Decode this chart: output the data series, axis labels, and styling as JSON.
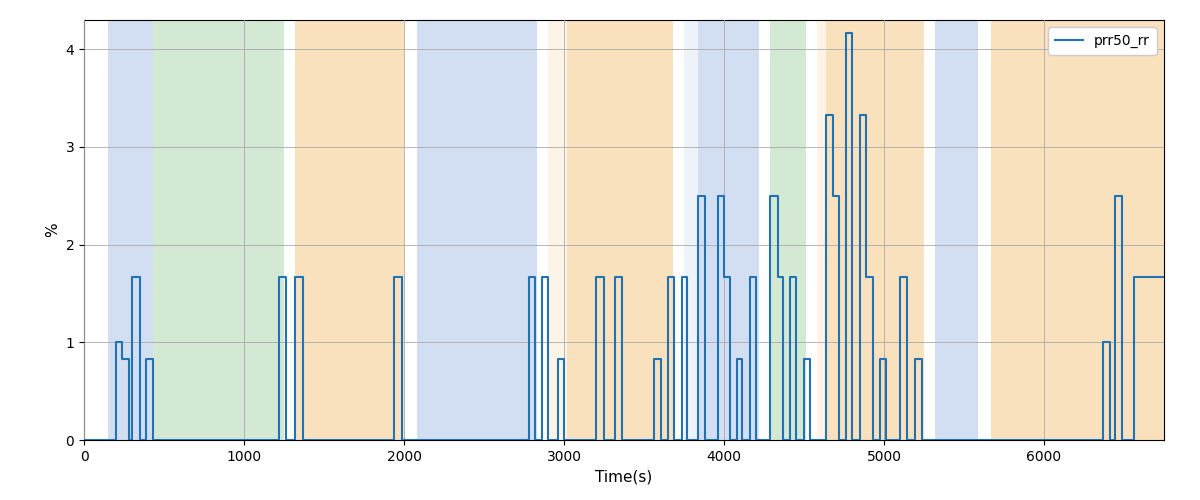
{
  "xlabel": "Time(s)",
  "ylabel": "%",
  "legend_label": "prr50_rr",
  "line_color": "#2171b5",
  "line_width": 1.5,
  "ylim": [
    0,
    4.3
  ],
  "xlim": [
    0,
    6750
  ],
  "figsize": [
    12.0,
    5.0
  ],
  "dpi": 100,
  "bg_regions": [
    {
      "xmin": 150,
      "xmax": 430,
      "color": "#aec6e8",
      "alpha": 0.55
    },
    {
      "xmin": 430,
      "xmax": 1250,
      "color": "#b2d8b2",
      "alpha": 0.55
    },
    {
      "xmin": 1320,
      "xmax": 2000,
      "color": "#f5c98a",
      "alpha": 0.55
    },
    {
      "xmin": 2080,
      "xmax": 2830,
      "color": "#aec6e8",
      "alpha": 0.55
    },
    {
      "xmin": 2900,
      "xmax": 3020,
      "color": "#f5c98a",
      "alpha": 0.2
    },
    {
      "xmin": 3020,
      "xmax": 3680,
      "color": "#f5c98a",
      "alpha": 0.55
    },
    {
      "xmin": 3750,
      "xmax": 3840,
      "color": "#aec6e8",
      "alpha": 0.2
    },
    {
      "xmin": 3840,
      "xmax": 4220,
      "color": "#aec6e8",
      "alpha": 0.55
    },
    {
      "xmin": 4290,
      "xmax": 4510,
      "color": "#b2d8b2",
      "alpha": 0.55
    },
    {
      "xmin": 4580,
      "xmax": 4640,
      "color": "#f5c98a",
      "alpha": 0.2
    },
    {
      "xmin": 4640,
      "xmax": 5250,
      "color": "#f5c98a",
      "alpha": 0.55
    },
    {
      "xmin": 5320,
      "xmax": 5590,
      "color": "#aec6e8",
      "alpha": 0.55
    },
    {
      "xmin": 5670,
      "xmax": 6750,
      "color": "#f5c98a",
      "alpha": 0.55
    }
  ],
  "xticks": [
    0,
    1000,
    2000,
    3000,
    4000,
    5000,
    6000
  ],
  "yticks": [
    0,
    1,
    2,
    3,
    4
  ],
  "line_segments": [
    [
      0,
      0.0
    ],
    [
      200,
      0.0
    ],
    [
      200,
      1.0
    ],
    [
      240,
      1.0
    ],
    [
      240,
      0.83
    ],
    [
      280,
      0.83
    ],
    [
      280,
      0.0
    ],
    [
      300,
      0.0
    ],
    [
      300,
      1.67
    ],
    [
      350,
      1.67
    ],
    [
      350,
      0.0
    ],
    [
      390,
      0.0
    ],
    [
      390,
      0.83
    ],
    [
      430,
      0.83
    ],
    [
      430,
      0.0
    ],
    [
      1220,
      0.0
    ],
    [
      1220,
      1.67
    ],
    [
      1265,
      1.67
    ],
    [
      1265,
      0.0
    ],
    [
      1320,
      0.0
    ],
    [
      1320,
      1.67
    ],
    [
      1370,
      1.67
    ],
    [
      1370,
      0.0
    ],
    [
      1940,
      0.0
    ],
    [
      1940,
      1.67
    ],
    [
      1985,
      1.67
    ],
    [
      1985,
      0.0
    ],
    [
      2780,
      0.0
    ],
    [
      2780,
      1.67
    ],
    [
      2820,
      1.67
    ],
    [
      2820,
      0.0
    ],
    [
      2860,
      0.0
    ],
    [
      2860,
      1.67
    ],
    [
      2900,
      1.67
    ],
    [
      2900,
      0.0
    ],
    [
      2960,
      0.0
    ],
    [
      2960,
      0.83
    ],
    [
      3000,
      0.83
    ],
    [
      3000,
      0.0
    ],
    [
      3200,
      0.0
    ],
    [
      3200,
      1.67
    ],
    [
      3250,
      1.67
    ],
    [
      3250,
      0.0
    ],
    [
      3320,
      0.0
    ],
    [
      3320,
      1.67
    ],
    [
      3360,
      1.67
    ],
    [
      3360,
      0.0
    ],
    [
      3560,
      0.0
    ],
    [
      3560,
      0.83
    ],
    [
      3605,
      0.83
    ],
    [
      3605,
      0.0
    ],
    [
      3650,
      0.0
    ],
    [
      3650,
      1.67
    ],
    [
      3690,
      1.67
    ],
    [
      3690,
      0.0
    ],
    [
      3735,
      0.0
    ],
    [
      3735,
      1.67
    ],
    [
      3770,
      1.67
    ],
    [
      3770,
      0.0
    ],
    [
      3840,
      0.0
    ],
    [
      3840,
      2.5
    ],
    [
      3880,
      2.5
    ],
    [
      3880,
      0.0
    ],
    [
      3960,
      0.0
    ],
    [
      3960,
      2.5
    ],
    [
      4000,
      2.5
    ],
    [
      4000,
      1.67
    ],
    [
      4035,
      1.67
    ],
    [
      4035,
      0.0
    ],
    [
      4080,
      0.0
    ],
    [
      4080,
      0.83
    ],
    [
      4115,
      0.83
    ],
    [
      4115,
      0.0
    ],
    [
      4160,
      0.0
    ],
    [
      4160,
      1.67
    ],
    [
      4200,
      1.67
    ],
    [
      4200,
      0.0
    ],
    [
      4290,
      0.0
    ],
    [
      4290,
      2.5
    ],
    [
      4335,
      2.5
    ],
    [
      4335,
      1.67
    ],
    [
      4370,
      1.67
    ],
    [
      4370,
      0.0
    ],
    [
      4415,
      0.0
    ],
    [
      4415,
      1.67
    ],
    [
      4450,
      1.67
    ],
    [
      4450,
      0.0
    ],
    [
      4500,
      0.0
    ],
    [
      4500,
      0.83
    ],
    [
      4540,
      0.83
    ],
    [
      4540,
      0.0
    ],
    [
      4640,
      0.0
    ],
    [
      4640,
      3.33
    ],
    [
      4680,
      3.33
    ],
    [
      4680,
      2.5
    ],
    [
      4720,
      2.5
    ],
    [
      4720,
      0.0
    ],
    [
      4760,
      0.0
    ],
    [
      4760,
      4.17
    ],
    [
      4800,
      4.17
    ],
    [
      4800,
      0.0
    ],
    [
      4850,
      0.0
    ],
    [
      4850,
      3.33
    ],
    [
      4890,
      3.33
    ],
    [
      4890,
      1.67
    ],
    [
      4930,
      1.67
    ],
    [
      4930,
      0.0
    ],
    [
      4975,
      0.0
    ],
    [
      4975,
      0.83
    ],
    [
      5015,
      0.83
    ],
    [
      5015,
      0.0
    ],
    [
      5100,
      0.0
    ],
    [
      5100,
      1.67
    ],
    [
      5145,
      1.67
    ],
    [
      5145,
      0.0
    ],
    [
      5195,
      0.0
    ],
    [
      5195,
      0.83
    ],
    [
      5235,
      0.83
    ],
    [
      5235,
      0.0
    ],
    [
      6370,
      0.0
    ],
    [
      6370,
      1.0
    ],
    [
      6415,
      1.0
    ],
    [
      6415,
      0.0
    ],
    [
      6445,
      0.0
    ],
    [
      6445,
      2.5
    ],
    [
      6490,
      2.5
    ],
    [
      6490,
      0.0
    ],
    [
      6560,
      0.0
    ],
    [
      6560,
      1.67
    ],
    [
      6595,
      1.67
    ],
    [
      6600,
      1.67
    ],
    [
      6750,
      1.67
    ]
  ]
}
